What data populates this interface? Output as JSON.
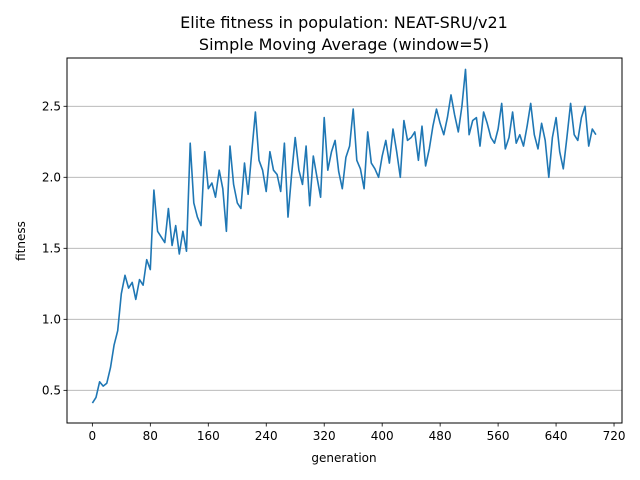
{
  "chart_data": {
    "type": "line",
    "title": "Elite fitness in population: NEAT-SRU/v21",
    "subtitle": "Simple Moving Average (window=5)",
    "xlabel": "generation",
    "ylabel": "fitness",
    "xlim": [
      -35,
      731
    ],
    "ylim": [
      0.27,
      2.84
    ],
    "xticks": [
      0,
      80,
      160,
      240,
      320,
      400,
      480,
      560,
      640,
      720
    ],
    "yticks": [
      0.5,
      1.0,
      1.5,
      2.0,
      2.5
    ],
    "ytick_labels": [
      "0.5",
      "1.0",
      "1.5",
      "2.0",
      "2.5"
    ],
    "grid": "y-major",
    "line_color": "#1f77b4",
    "series": [
      {
        "x": [
          0,
          5,
          10,
          15,
          20,
          25,
          30,
          35,
          40,
          45,
          50,
          55,
          60,
          65,
          70,
          75,
          80,
          85,
          90,
          95,
          100,
          105,
          110,
          115,
          120,
          125,
          130,
          135,
          140,
          145,
          150,
          155,
          160,
          165,
          170,
          175,
          180,
          185,
          190,
          195,
          200,
          205,
          210,
          215,
          220,
          225,
          230,
          235,
          240,
          245,
          250,
          255,
          260,
          265,
          270,
          275,
          280,
          285,
          290,
          295,
          300,
          305,
          310,
          315,
          320,
          325,
          330,
          335,
          340,
          345,
          350,
          355,
          360,
          365,
          370,
          375,
          380,
          385,
          390,
          395,
          400,
          405,
          410,
          415,
          420,
          425,
          430,
          435,
          440,
          445,
          450,
          455,
          460,
          465,
          470,
          475,
          480,
          485,
          490,
          495,
          500,
          505,
          510,
          515,
          520,
          525,
          530,
          535,
          540,
          545,
          550,
          555,
          560,
          565,
          570,
          575,
          580,
          585,
          590,
          595,
          600,
          605,
          610,
          615,
          620,
          625,
          630,
          635,
          640,
          645,
          650,
          655,
          660,
          665,
          670,
          675,
          680,
          685,
          690,
          695
        ],
        "y": [
          0.41,
          0.45,
          0.56,
          0.53,
          0.55,
          0.66,
          0.82,
          0.92,
          1.18,
          1.31,
          1.22,
          1.26,
          1.14,
          1.28,
          1.24,
          1.42,
          1.35,
          1.91,
          1.62,
          1.58,
          1.54,
          1.78,
          1.52,
          1.66,
          1.46,
          1.62,
          1.48,
          2.24,
          1.82,
          1.72,
          1.66,
          2.18,
          1.92,
          1.96,
          1.86,
          2.05,
          1.92,
          1.62,
          2.22,
          1.95,
          1.82,
          1.78,
          2.1,
          1.88,
          2.18,
          2.46,
          2.12,
          2.05,
          1.9,
          2.18,
          2.05,
          2.02,
          1.9,
          2.24,
          1.72,
          2.02,
          2.28,
          2.05,
          1.95,
          2.22,
          1.8,
          2.15,
          2.0,
          1.86,
          2.42,
          2.05,
          2.18,
          2.26,
          2.04,
          1.92,
          2.14,
          2.22,
          2.48,
          2.12,
          2.06,
          1.92,
          2.32,
          2.1,
          2.06,
          2.0,
          2.15,
          2.26,
          2.1,
          2.34,
          2.18,
          2.0,
          2.4,
          2.26,
          2.28,
          2.32,
          2.12,
          2.36,
          2.08,
          2.2,
          2.36,
          2.48,
          2.38,
          2.3,
          2.42,
          2.58,
          2.44,
          2.32,
          2.5,
          2.76,
          2.3,
          2.4,
          2.42,
          2.22,
          2.46,
          2.38,
          2.28,
          2.24,
          2.34,
          2.52,
          2.2,
          2.28,
          2.46,
          2.24,
          2.3,
          2.22,
          2.36,
          2.52,
          2.3,
          2.2,
          2.38,
          2.26,
          2.0,
          2.28,
          2.42,
          2.18,
          2.06,
          2.28,
          2.52,
          2.3,
          2.26,
          2.42,
          2.5,
          2.22,
          2.34,
          2.3
        ]
      }
    ]
  }
}
